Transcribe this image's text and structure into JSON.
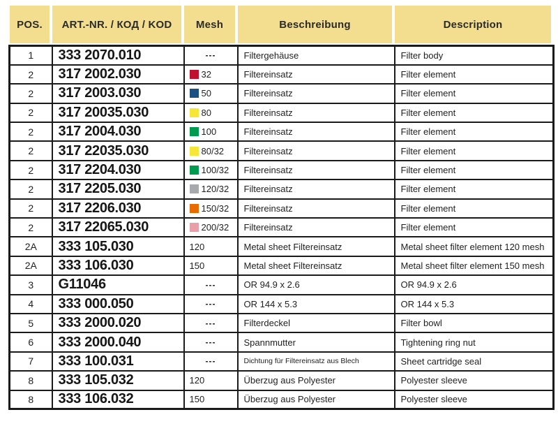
{
  "colors": {
    "header_bg": "#f2de8e",
    "border": "#1a1a1a",
    "text": "#1f1f1f"
  },
  "table": {
    "headers": [
      {
        "label": "POS."
      },
      {
        "label": "ART.-NR. / КОД / KOD"
      },
      {
        "label": "Mesh"
      },
      {
        "label": "Beschreibung"
      },
      {
        "label": "Description"
      }
    ],
    "rows": [
      {
        "pos": "1",
        "art": "333 2070.010",
        "mesh": {
          "type": "dash",
          "label": "---"
        },
        "beschreibung": "Filtergehäuse",
        "description": "Filter body"
      },
      {
        "pos": "2",
        "art": "317 2002.030",
        "mesh": {
          "type": "swatch",
          "label": "32",
          "color": "#c0122f"
        },
        "beschreibung": "Filtereinsatz",
        "description": "Filter element"
      },
      {
        "pos": "2",
        "art": "317 2003.030",
        "mesh": {
          "type": "swatch",
          "label": "50",
          "color": "#1c5181"
        },
        "beschreibung": "Filtereinsatz",
        "description": "Filter element"
      },
      {
        "pos": "2",
        "art": "317 20035.030",
        "mesh": {
          "type": "swatch",
          "label": "80",
          "color": "#f6e737"
        },
        "beschreibung": "Filtereinsatz",
        "description": "Filter element"
      },
      {
        "pos": "2",
        "art": "317 2004.030",
        "mesh": {
          "type": "swatch",
          "label": "100",
          "color": "#019a4e"
        },
        "beschreibung": "Filtereinsatz",
        "description": "Filter element"
      },
      {
        "pos": "2",
        "art": "317 22035.030",
        "mesh": {
          "type": "swatch",
          "label": "80/32",
          "color": "#f6e737"
        },
        "beschreibung": "Filtereinsatz",
        "description": "Filter element"
      },
      {
        "pos": "2",
        "art": "317 2204.030",
        "mesh": {
          "type": "swatch",
          "label": "100/32",
          "color": "#019a4e"
        },
        "beschreibung": "Filtereinsatz",
        "description": "Filter element"
      },
      {
        "pos": "2",
        "art": "317 2205.030",
        "mesh": {
          "type": "swatch",
          "label": "120/32",
          "color": "#a7a9ac"
        },
        "beschreibung": "Filtereinsatz",
        "description": "Filter element"
      },
      {
        "pos": "2",
        "art": "317 2206.030",
        "mesh": {
          "type": "swatch",
          "label": "150/32",
          "color": "#e76b00"
        },
        "beschreibung": "Filtereinsatz",
        "description": "Filter element"
      },
      {
        "pos": "2",
        "art": "317 22065.030",
        "mesh": {
          "type": "swatch",
          "label": "200/32",
          "color": "#e99fa8"
        },
        "beschreibung": "Filtereinsatz",
        "description": "Filter element"
      },
      {
        "pos": "2A",
        "art": "333 105.030",
        "mesh": {
          "type": "text",
          "label": "120"
        },
        "beschreibung": "Metal sheet Filtereinsatz",
        "description": "Metal sheet filter element 120 mesh"
      },
      {
        "pos": "2A",
        "art": "333 106.030",
        "mesh": {
          "type": "text",
          "label": "150"
        },
        "beschreibung": "Metal sheet Filtereinsatz",
        "description": "Metal sheet filter element 150 mesh"
      },
      {
        "pos": "3",
        "art": "G11046",
        "mesh": {
          "type": "dash",
          "label": "---"
        },
        "beschreibung": "OR 94.9 x 2.6",
        "description": "OR 94.9 x 2.6"
      },
      {
        "pos": "4",
        "art": "333 000.050",
        "mesh": {
          "type": "dash",
          "label": "---"
        },
        "beschreibung": "OR 144 x 5.3",
        "description": "OR 144 x 5.3"
      },
      {
        "pos": "5",
        "art": "333 2000.020",
        "mesh": {
          "type": "dash",
          "label": "---"
        },
        "beschreibung": "Filterdeckel",
        "description": "Filter bowl"
      },
      {
        "pos": "6",
        "art": "333 2000.040",
        "mesh": {
          "type": "dash",
          "label": "---"
        },
        "beschreibung": "Spannmutter",
        "description": "Tightening ring nut"
      },
      {
        "pos": "7",
        "art": "333 100.031",
        "mesh": {
          "type": "dash",
          "label": "---"
        },
        "beschreibung": "Dichtung für Filtereinsatz aus Blech",
        "description": "Sheet cartridge seal"
      },
      {
        "pos": "8",
        "art": "333 105.032",
        "mesh": {
          "type": "text",
          "label": "120"
        },
        "beschreibung": "Überzug aus Polyester",
        "description": "Polyester sleeve"
      },
      {
        "pos": "8",
        "art": "333 106.032",
        "mesh": {
          "type": "text",
          "label": "150"
        },
        "beschreibung": "Überzug aus Polyester",
        "description": "Polyester sleeve"
      }
    ]
  }
}
